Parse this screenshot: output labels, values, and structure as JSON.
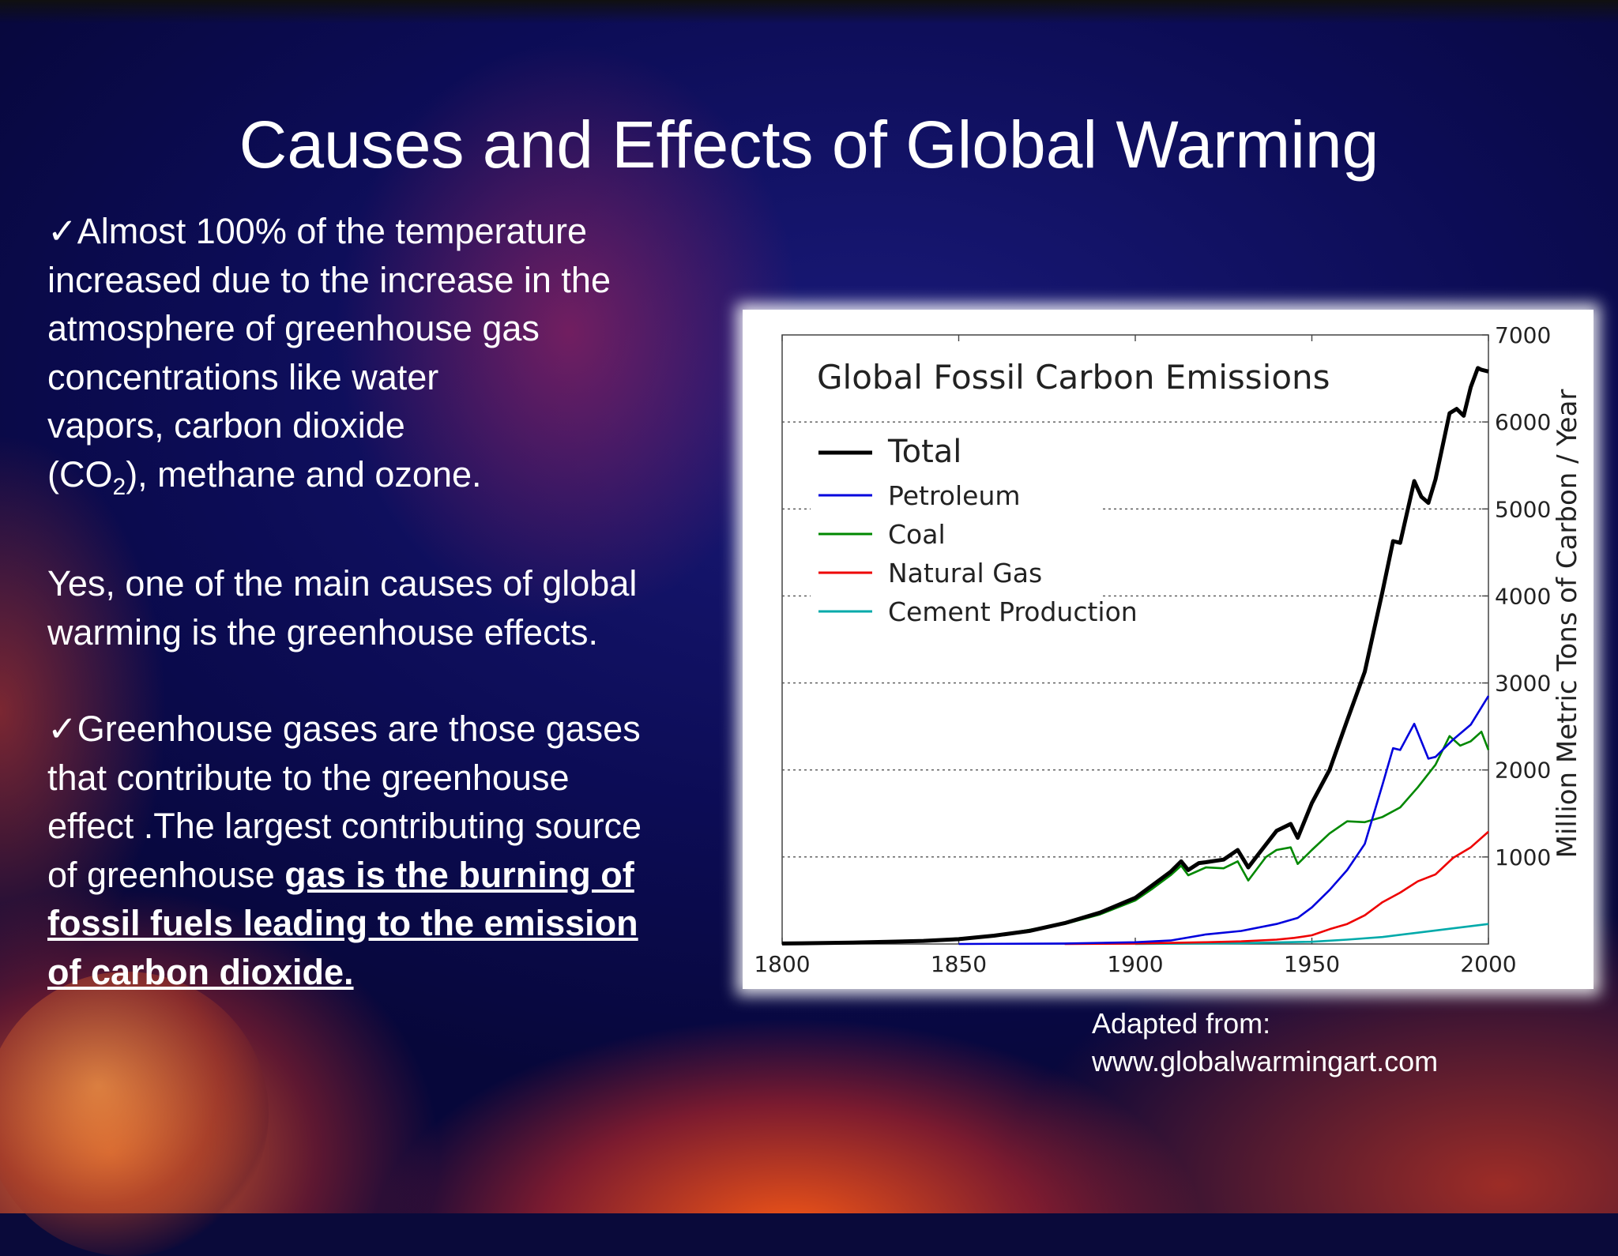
{
  "slide": {
    "title": "Causes and Effects of Global Warming",
    "checkmark": "✓",
    "bullet1": {
      "line1": "Almost 100% of the temperature",
      "line2": "increased due to the increase in the",
      "line3": "atmosphere of greenhouse gas",
      "line4": "concentrations like water",
      "line5": "vapors, carbon dioxide",
      "line6_pre": "(CO",
      "line6_sub": "2",
      "line6_post": "), methane and ozone."
    },
    "paragraph2": {
      "line1": "Yes, one of the main causes of global",
      "line2": "warming is the greenhouse effects."
    },
    "bullet3": {
      "line1": "Greenhouse gases are those gases",
      "line2": "that contribute to the greenhouse",
      "line3": "effect .The largest contributing source",
      "line4_pre": "of greenhouse ",
      "line4_emph": "gas is the burning of",
      "line5_emph": "fossil fuels leading to the emission",
      "line6_emph": "of carbon dioxide."
    },
    "credit": {
      "line1": "Adapted from:",
      "line2": "www.globalwarmingart.com"
    }
  },
  "chart_data": {
    "type": "line",
    "title": "Global Fossil Carbon Emissions",
    "xlabel": "",
    "ylabel": "Million Metric Tons of Carbon / Year",
    "xlim": [
      1800,
      2000
    ],
    "ylim": [
      0,
      7000
    ],
    "x_ticks": [
      1800,
      1850,
      1900,
      1950,
      2000
    ],
    "y_ticks": [
      1000,
      2000,
      3000,
      4000,
      5000,
      6000,
      7000
    ],
    "y_axis_side": "right",
    "grid": "horizontal dotted",
    "legend_position": "top-left",
    "series": [
      {
        "name": "Total",
        "color": "#000000",
        "x": [
          1800,
          1820,
          1840,
          1850,
          1860,
          1870,
          1880,
          1890,
          1900,
          1905,
          1910,
          1913,
          1915,
          1918,
          1920,
          1925,
          1929,
          1932,
          1935,
          1940,
          1944,
          1946,
          1950,
          1955,
          1960,
          1965,
          1970,
          1973,
          1975,
          1979,
          1981,
          1983,
          1985,
          1989,
          1991,
          1993,
          1995,
          1997,
          1998,
          2000
        ],
        "y": [
          5,
          15,
          35,
          55,
          95,
          150,
          240,
          360,
          530,
          680,
          830,
          950,
          850,
          930,
          940,
          970,
          1080,
          880,
          1040,
          1300,
          1380,
          1220,
          1620,
          2000,
          2570,
          3130,
          4050,
          4630,
          4610,
          5320,
          5140,
          5070,
          5340,
          6100,
          6150,
          6070,
          6400,
          6620,
          6600,
          6580
        ]
      },
      {
        "name": "Petroleum",
        "color": "#0000dd",
        "x": [
          1850,
          1880,
          1900,
          1910,
          1920,
          1930,
          1940,
          1946,
          1950,
          1955,
          1960,
          1965,
          1970,
          1973,
          1975,
          1979,
          1983,
          1985,
          1990,
          1995,
          2000
        ],
        "y": [
          0,
          5,
          20,
          40,
          110,
          150,
          230,
          300,
          420,
          620,
          850,
          1150,
          1830,
          2250,
          2230,
          2530,
          2130,
          2150,
          2350,
          2520,
          2850
        ]
      },
      {
        "name": "Coal",
        "color": "#008800",
        "x": [
          1800,
          1840,
          1860,
          1880,
          1890,
          1900,
          1905,
          1910,
          1913,
          1915,
          1920,
          1925,
          1929,
          1932,
          1937,
          1940,
          1944,
          1946,
          1950,
          1955,
          1960,
          1965,
          1970,
          1975,
          1980,
          1985,
          1989,
          1992,
          1995,
          1998,
          2000
        ],
        "y": [
          5,
          35,
          95,
          230,
          340,
          500,
          640,
          790,
          900,
          790,
          880,
          870,
          950,
          730,
          1000,
          1080,
          1110,
          920,
          1080,
          1270,
          1410,
          1400,
          1460,
          1570,
          1800,
          2060,
          2390,
          2280,
          2330,
          2440,
          2230
        ]
      },
      {
        "name": "Natural Gas",
        "color": "#ee0000",
        "x": [
          1880,
          1900,
          1920,
          1930,
          1940,
          1945,
          1950,
          1955,
          1960,
          1965,
          1970,
          1975,
          1980,
          1985,
          1990,
          1995,
          2000
        ],
        "y": [
          0,
          5,
          20,
          30,
          50,
          70,
          100,
          170,
          230,
          330,
          480,
          590,
          720,
          800,
          990,
          1110,
          1290
        ]
      },
      {
        "name": "Cement Production",
        "color": "#00aaaa",
        "x": [
          1900,
          1930,
          1950,
          1960,
          1970,
          1980,
          1990,
          2000
        ],
        "y": [
          0,
          10,
          25,
          50,
          80,
          130,
          180,
          230
        ]
      }
    ]
  }
}
